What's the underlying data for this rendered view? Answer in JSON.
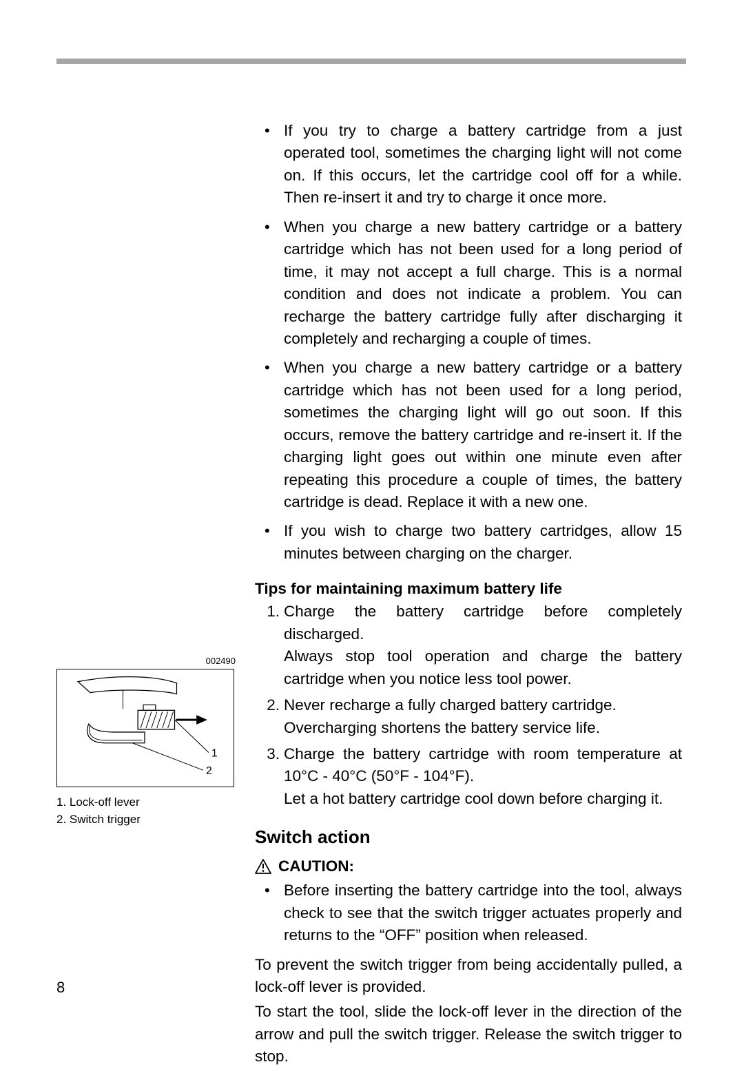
{
  "colors": {
    "hr": "#a6a6a6",
    "text": "#000000",
    "bg": "#ffffff",
    "stroke": "#000000"
  },
  "typography": {
    "body_fontsize_pt": 17,
    "heading_fontsize_pt": 20,
    "figcode_fontsize_pt": 10,
    "figlabel_fontsize_pt": 13,
    "family": "Arial"
  },
  "bullets": [
    "If you try to charge a battery cartridge from a just operated tool, sometimes the charging light will not come on. If this occurs, let the cartridge cool off for a while. Then re-insert it and try to charge it once more.",
    "When you charge a new battery cartridge or a battery cartridge which has not been used for a long period of time, it may not accept a full charge. This is a normal condition and does not indicate a problem. You can recharge the battery cartridge fully after discharging it completely and recharging a couple of times.",
    "When you charge a new battery cartridge or a battery cartridge which has not been used for a long period, sometimes the charging light will go out soon. If this occurs, remove the battery cartridge and re-insert it. If the charging light goes out within one minute even after repeating this procedure a couple of times, the battery cartridge is dead. Replace it with a new one.",
    "If you wish to charge two battery cartridges, allow 15 minutes between charging on the charger."
  ],
  "tips_heading": "Tips for maintaining maximum battery life",
  "tips": [
    {
      "n": "1.",
      "text": "Charge the battery cartridge before completely discharged.\nAlways stop tool operation and charge the battery cartridge when you notice less tool power."
    },
    {
      "n": "2.",
      "text": "Never recharge a fully charged battery cartridge.\nOvercharging shortens the battery service life."
    },
    {
      "n": "3.",
      "text": "Charge the battery cartridge with room temperature at 10°C - 40°C (50°F - 104°F).\nLet a hot battery cartridge cool down before charging it."
    }
  ],
  "section_heading": "Switch action",
  "caution_label": "CAUTION:",
  "caution_bullets": [
    "Before inserting the battery cartridge into the tool, always check to see that the switch trigger actuates properly and returns to the “OFF” position when released."
  ],
  "body_paras": [
    "To prevent the switch trigger from being accidentally pulled, a lock-off lever is provided.",
    "To start the tool, slide the lock-off lever in the direction of the arrow and pull the switch trigger. Release the switch trigger to stop."
  ],
  "figure": {
    "code": "002490",
    "callouts": {
      "c1": "1",
      "c2": "2"
    },
    "legend": {
      "l1": "1.  Lock-off lever",
      "l2": "2.  Switch trigger"
    }
  },
  "page_number": "8"
}
